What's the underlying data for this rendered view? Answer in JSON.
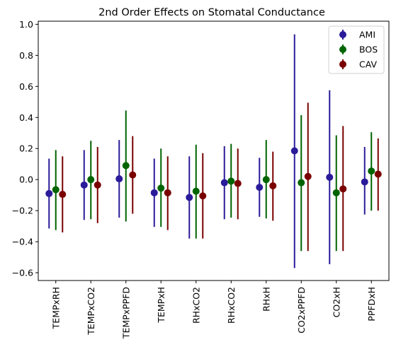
{
  "chart_data": {
    "type": "errorbar",
    "title": "2nd Order Effects on Stomatal Conductance",
    "xlabel": "",
    "ylabel": "",
    "ylim": [
      -0.65,
      1.02
    ],
    "yticks": [
      -0.6,
      -0.4,
      -0.2,
      0.0,
      0.2,
      0.4,
      0.6,
      0.8,
      1.0
    ],
    "ytick_labels": [
      "−0.6",
      "−0.4",
      "−0.2",
      "0.0",
      "0.2",
      "0.4",
      "0.6",
      "0.8",
      "1.0"
    ],
    "grid": false,
    "legend_placement": "top-right",
    "categories": [
      "TEMPxRH",
      "TEMPxCO2",
      "TEMPxPPFD",
      "TEMPxH",
      "RHxCO2",
      "RHxCO2",
      "RHxH",
      "CO2xPPFD",
      "CO2xH",
      "PPFDxH"
    ],
    "series": [
      {
        "name": "AMI",
        "color": "#2a1b9a",
        "values": [
          -0.09,
          -0.035,
          0.005,
          -0.085,
          -0.115,
          -0.02,
          -0.05,
          0.185,
          0.015,
          -0.015
        ],
        "lower": [
          -0.315,
          -0.26,
          -0.245,
          -0.305,
          -0.38,
          -0.255,
          -0.24,
          -0.57,
          -0.545,
          -0.225
        ],
        "upper": [
          0.135,
          0.19,
          0.255,
          0.135,
          0.15,
          0.215,
          0.14,
          0.935,
          0.575,
          0.21
        ]
      },
      {
        "name": "BOS",
        "color": "#006400",
        "values": [
          -0.065,
          0.0,
          0.09,
          -0.055,
          -0.075,
          -0.01,
          0.0,
          -0.02,
          -0.085,
          0.055
        ],
        "lower": [
          -0.325,
          -0.255,
          -0.27,
          -0.305,
          -0.38,
          -0.245,
          -0.25,
          -0.46,
          -0.46,
          -0.2
        ],
        "upper": [
          0.19,
          0.25,
          0.445,
          0.2,
          0.225,
          0.23,
          0.255,
          0.415,
          0.285,
          0.305
        ]
      },
      {
        "name": "CAV",
        "color": "#7a0000",
        "values": [
          -0.095,
          -0.035,
          0.03,
          -0.085,
          -0.105,
          -0.025,
          -0.04,
          0.02,
          -0.06,
          0.035
        ],
        "lower": [
          -0.34,
          -0.28,
          -0.22,
          -0.325,
          -0.38,
          -0.255,
          -0.265,
          -0.46,
          -0.46,
          -0.2
        ],
        "upper": [
          0.15,
          0.21,
          0.28,
          0.15,
          0.17,
          0.2,
          0.18,
          0.495,
          0.345,
          0.265
        ]
      }
    ]
  }
}
